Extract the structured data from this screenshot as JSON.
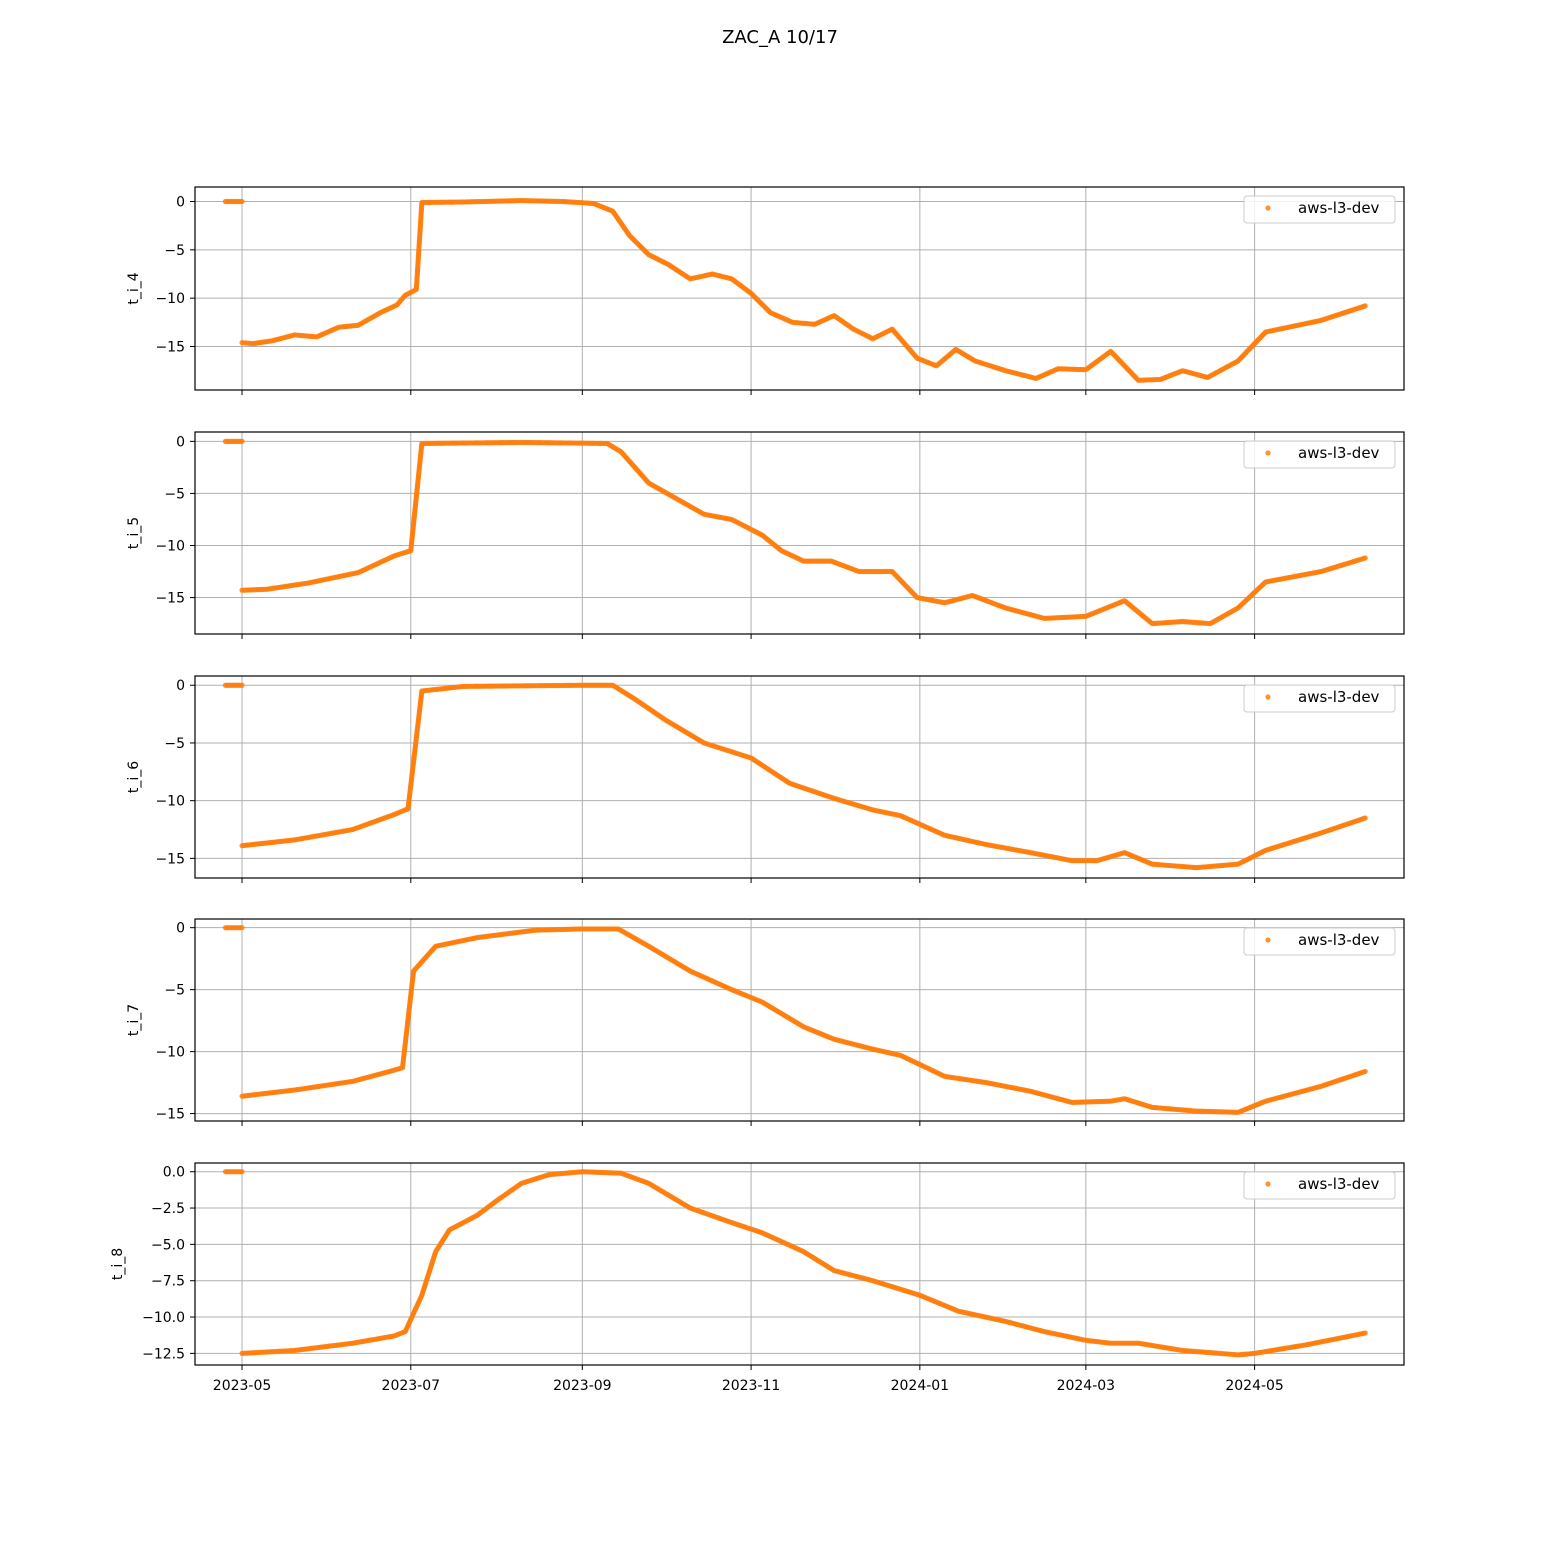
{
  "figure": {
    "title": "ZAC_A 10/17"
  },
  "colors": {
    "series": "#ff7f0e",
    "grid": "#b0b0b0",
    "axes": "#000000"
  },
  "x_ticks": [
    "2023-05",
    "2023-07",
    "2023-09",
    "2023-11",
    "2024-01",
    "2024-03",
    "2024-05"
  ],
  "chart_data": [
    {
      "type": "scatter",
      "ylabel": "t_i_4",
      "legend": {
        "label": "aws-l3-dev",
        "placement": "upper right"
      },
      "grid": true,
      "xlim": [
        "2023-04-14",
        "2024-06-24"
      ],
      "ylim": [
        -19.5,
        1.5
      ],
      "yticks": [
        0,
        -5,
        -10,
        -15
      ],
      "ytick_labels": [
        "0",
        "−5",
        "−10",
        "−15"
      ],
      "series": [
        {
          "name": "aws-l3-dev",
          "points": [
            [
              "2023-04-25",
              0
            ],
            [
              "2023-05-01",
              0
            ],
            [
              "2023-05-01",
              -14.6
            ],
            [
              "2023-05-05",
              -14.7
            ],
            [
              "2023-05-12",
              -14.4
            ],
            [
              "2023-05-20",
              -13.8
            ],
            [
              "2023-05-28",
              -14.0
            ],
            [
              "2023-06-05",
              -13.0
            ],
            [
              "2023-06-12",
              -12.8
            ],
            [
              "2023-06-20",
              -11.5
            ],
            [
              "2023-06-26",
              -10.7
            ],
            [
              "2023-06-29",
              -9.7
            ],
            [
              "2023-07-03",
              -9.1
            ],
            [
              "2023-07-05",
              -0.1
            ],
            [
              "2023-07-20",
              -0.05
            ],
            [
              "2023-08-10",
              0.1
            ],
            [
              "2023-08-25",
              0.0
            ],
            [
              "2023-09-05",
              -0.2
            ],
            [
              "2023-09-12",
              -1.0
            ],
            [
              "2023-09-18",
              -3.5
            ],
            [
              "2023-09-25",
              -5.5
            ],
            [
              "2023-10-02",
              -6.5
            ],
            [
              "2023-10-10",
              -8.0
            ],
            [
              "2023-10-18",
              -7.5
            ],
            [
              "2023-10-25",
              -8.0
            ],
            [
              "2023-11-01",
              -9.5
            ],
            [
              "2023-11-08",
              -11.5
            ],
            [
              "2023-11-16",
              -12.5
            ],
            [
              "2023-11-24",
              -12.7
            ],
            [
              "2023-12-01",
              -11.8
            ],
            [
              "2023-12-08",
              -13.2
            ],
            [
              "2023-12-15",
              -14.2
            ],
            [
              "2023-12-22",
              -13.2
            ],
            [
              "2023-12-31",
              -16.2
            ],
            [
              "2024-01-07",
              -17.0
            ],
            [
              "2024-01-14",
              -15.3
            ],
            [
              "2024-01-21",
              -16.5
            ],
            [
              "2024-02-01",
              -17.5
            ],
            [
              "2024-02-12",
              -18.3
            ],
            [
              "2024-02-20",
              -17.3
            ],
            [
              "2024-03-01",
              -17.4
            ],
            [
              "2024-03-10",
              -15.5
            ],
            [
              "2024-03-20",
              -18.5
            ],
            [
              "2024-03-28",
              -18.4
            ],
            [
              "2024-04-05",
              -17.5
            ],
            [
              "2024-04-14",
              -18.2
            ],
            [
              "2024-04-25",
              -16.5
            ],
            [
              "2024-05-05",
              -13.5
            ],
            [
              "2024-05-25",
              -12.3
            ],
            [
              "2024-06-10",
              -10.8
            ]
          ]
        }
      ]
    },
    {
      "type": "scatter",
      "ylabel": "t_i_5",
      "legend": {
        "label": "aws-l3-dev",
        "placement": "upper right"
      },
      "grid": true,
      "xlim": [
        "2023-04-14",
        "2024-06-24"
      ],
      "ylim": [
        -18.5,
        0.9
      ],
      "yticks": [
        0,
        -5,
        -10,
        -15
      ],
      "ytick_labels": [
        "0",
        "−5",
        "−10",
        "−15"
      ],
      "series": [
        {
          "name": "aws-l3-dev",
          "points": [
            [
              "2023-04-25",
              0
            ],
            [
              "2023-05-01",
              0
            ],
            [
              "2023-05-01",
              -14.3
            ],
            [
              "2023-05-10",
              -14.2
            ],
            [
              "2023-05-25",
              -13.6
            ],
            [
              "2023-06-12",
              -12.6
            ],
            [
              "2023-06-25",
              -11.0
            ],
            [
              "2023-07-01",
              -10.5
            ],
            [
              "2023-07-05",
              -0.2
            ],
            [
              "2023-08-10",
              -0.1
            ],
            [
              "2023-09-10",
              -0.2
            ],
            [
              "2023-09-15",
              -1.0
            ],
            [
              "2023-09-25",
              -4.0
            ],
            [
              "2023-10-05",
              -5.5
            ],
            [
              "2023-10-15",
              -7.0
            ],
            [
              "2023-10-25",
              -7.5
            ],
            [
              "2023-11-05",
              -9.0
            ],
            [
              "2023-11-12",
              -10.5
            ],
            [
              "2023-11-20",
              -11.5
            ],
            [
              "2023-11-30",
              -11.5
            ],
            [
              "2023-12-10",
              -12.5
            ],
            [
              "2023-12-22",
              -12.5
            ],
            [
              "2023-12-31",
              -15.0
            ],
            [
              "2024-01-10",
              -15.5
            ],
            [
              "2024-01-20",
              -14.8
            ],
            [
              "2024-02-01",
              -16.0
            ],
            [
              "2024-02-15",
              -17.0
            ],
            [
              "2024-03-01",
              -16.8
            ],
            [
              "2024-03-15",
              -15.3
            ],
            [
              "2024-03-25",
              -17.5
            ],
            [
              "2024-04-05",
              -17.3
            ],
            [
              "2024-04-15",
              -17.5
            ],
            [
              "2024-04-25",
              -16.0
            ],
            [
              "2024-05-05",
              -13.5
            ],
            [
              "2024-05-25",
              -12.5
            ],
            [
              "2024-06-10",
              -11.2
            ]
          ]
        }
      ]
    },
    {
      "type": "scatter",
      "ylabel": "t_i_6",
      "legend": {
        "label": "aws-l3-dev",
        "placement": "upper right"
      },
      "grid": true,
      "xlim": [
        "2023-04-14",
        "2024-06-24"
      ],
      "ylim": [
        -16.7,
        0.8
      ],
      "yticks": [
        0,
        -5,
        -10,
        -15
      ],
      "ytick_labels": [
        "0",
        "−5",
        "−10",
        "−15"
      ],
      "series": [
        {
          "name": "aws-l3-dev",
          "points": [
            [
              "2023-04-25",
              0
            ],
            [
              "2023-05-01",
              0
            ],
            [
              "2023-05-01",
              -13.9
            ],
            [
              "2023-05-20",
              -13.4
            ],
            [
              "2023-06-10",
              -12.5
            ],
            [
              "2023-06-25",
              -11.2
            ],
            [
              "2023-06-30",
              -10.7
            ],
            [
              "2023-07-05",
              -0.5
            ],
            [
              "2023-07-20",
              -0.1
            ],
            [
              "2023-09-01",
              0.0
            ],
            [
              "2023-09-12",
              0.0
            ],
            [
              "2023-09-20",
              -1.2
            ],
            [
              "2023-10-01",
              -3.0
            ],
            [
              "2023-10-15",
              -5.0
            ],
            [
              "2023-11-01",
              -6.3
            ],
            [
              "2023-11-15",
              -8.5
            ],
            [
              "2023-12-01",
              -9.8
            ],
            [
              "2023-12-15",
              -10.8
            ],
            [
              "2023-12-25",
              -11.3
            ],
            [
              "2024-01-10",
              -13.0
            ],
            [
              "2024-01-25",
              -13.8
            ],
            [
              "2024-02-10",
              -14.5
            ],
            [
              "2024-02-25",
              -15.2
            ],
            [
              "2024-03-05",
              -15.2
            ],
            [
              "2024-03-15",
              -14.5
            ],
            [
              "2024-03-25",
              -15.5
            ],
            [
              "2024-04-10",
              -15.8
            ],
            [
              "2024-04-25",
              -15.5
            ],
            [
              "2024-05-05",
              -14.3
            ],
            [
              "2024-05-25",
              -12.8
            ],
            [
              "2024-06-10",
              -11.5
            ]
          ]
        }
      ]
    },
    {
      "type": "scatter",
      "ylabel": "t_i_7",
      "legend": {
        "label": "aws-l3-dev",
        "placement": "upper right"
      },
      "grid": true,
      "xlim": [
        "2023-04-14",
        "2024-06-24"
      ],
      "ylim": [
        -15.6,
        0.7
      ],
      "yticks": [
        0,
        -5,
        -10,
        -15
      ],
      "ytick_labels": [
        "0",
        "−5",
        "−10",
        "−15"
      ],
      "series": [
        {
          "name": "aws-l3-dev",
          "points": [
            [
              "2023-04-25",
              0
            ],
            [
              "2023-05-01",
              0
            ],
            [
              "2023-05-01",
              -13.6
            ],
            [
              "2023-05-20",
              -13.1
            ],
            [
              "2023-06-10",
              -12.4
            ],
            [
              "2023-06-25",
              -11.5
            ],
            [
              "2023-06-28",
              -11.3
            ],
            [
              "2023-07-02",
              -3.5
            ],
            [
              "2023-07-10",
              -1.5
            ],
            [
              "2023-07-25",
              -0.8
            ],
            [
              "2023-08-15",
              -0.2
            ],
            [
              "2023-09-01",
              -0.1
            ],
            [
              "2023-09-14",
              -0.1
            ],
            [
              "2023-09-25",
              -1.5
            ],
            [
              "2023-10-10",
              -3.5
            ],
            [
              "2023-10-25",
              -5.0
            ],
            [
              "2023-11-05",
              -6.0
            ],
            [
              "2023-11-20",
              -8.0
            ],
            [
              "2023-12-01",
              -9.0
            ],
            [
              "2023-12-15",
              -9.8
            ],
            [
              "2023-12-25",
              -10.3
            ],
            [
              "2024-01-10",
              -12.0
            ],
            [
              "2024-01-25",
              -12.5
            ],
            [
              "2024-02-10",
              -13.2
            ],
            [
              "2024-02-25",
              -14.1
            ],
            [
              "2024-03-10",
              -14.0
            ],
            [
              "2024-03-15",
              -13.8
            ],
            [
              "2024-03-25",
              -14.5
            ],
            [
              "2024-04-10",
              -14.8
            ],
            [
              "2024-04-25",
              -14.9
            ],
            [
              "2024-05-05",
              -14.0
            ],
            [
              "2024-05-25",
              -12.8
            ],
            [
              "2024-06-10",
              -11.6
            ]
          ]
        }
      ]
    },
    {
      "type": "scatter",
      "ylabel": "t_i_8",
      "legend": {
        "label": "aws-l3-dev",
        "placement": "upper right"
      },
      "grid": true,
      "xlim": [
        "2023-04-14",
        "2024-06-24"
      ],
      "ylim": [
        -13.3,
        0.6
      ],
      "yticks": [
        0,
        -2.5,
        -5,
        -7.5,
        -10,
        -12.5
      ],
      "ytick_labels": [
        "0.0",
        "−2.5",
        "−5.0",
        "−7.5",
        "−10.0",
        "−12.5"
      ],
      "series": [
        {
          "name": "aws-l3-dev",
          "points": [
            [
              "2023-04-25",
              0
            ],
            [
              "2023-05-01",
              0
            ],
            [
              "2023-05-01",
              -12.5
            ],
            [
              "2023-05-20",
              -12.3
            ],
            [
              "2023-06-10",
              -11.8
            ],
            [
              "2023-06-25",
              -11.3
            ],
            [
              "2023-06-29",
              -11.0
            ],
            [
              "2023-07-05",
              -8.5
            ],
            [
              "2023-07-10",
              -5.5
            ],
            [
              "2023-07-15",
              -4.0
            ],
            [
              "2023-07-25",
              -3.0
            ],
            [
              "2023-08-01",
              -2.0
            ],
            [
              "2023-08-10",
              -0.8
            ],
            [
              "2023-08-20",
              -0.2
            ],
            [
              "2023-09-01",
              0.0
            ],
            [
              "2023-09-15",
              -0.1
            ],
            [
              "2023-09-25",
              -0.8
            ],
            [
              "2023-10-10",
              -2.5
            ],
            [
              "2023-10-25",
              -3.5
            ],
            [
              "2023-11-05",
              -4.2
            ],
            [
              "2023-11-20",
              -5.5
            ],
            [
              "2023-12-01",
              -6.8
            ],
            [
              "2023-12-15",
              -7.5
            ],
            [
              "2024-01-01",
              -8.5
            ],
            [
              "2024-01-15",
              -9.6
            ],
            [
              "2024-02-01",
              -10.3
            ],
            [
              "2024-02-15",
              -11.0
            ],
            [
              "2024-03-01",
              -11.6
            ],
            [
              "2024-03-10",
              -11.8
            ],
            [
              "2024-03-20",
              -11.8
            ],
            [
              "2024-04-05",
              -12.3
            ],
            [
              "2024-04-25",
              -12.6
            ],
            [
              "2024-05-01",
              -12.5
            ],
            [
              "2024-05-20",
              -11.9
            ],
            [
              "2024-06-10",
              -11.1
            ]
          ]
        }
      ]
    }
  ]
}
